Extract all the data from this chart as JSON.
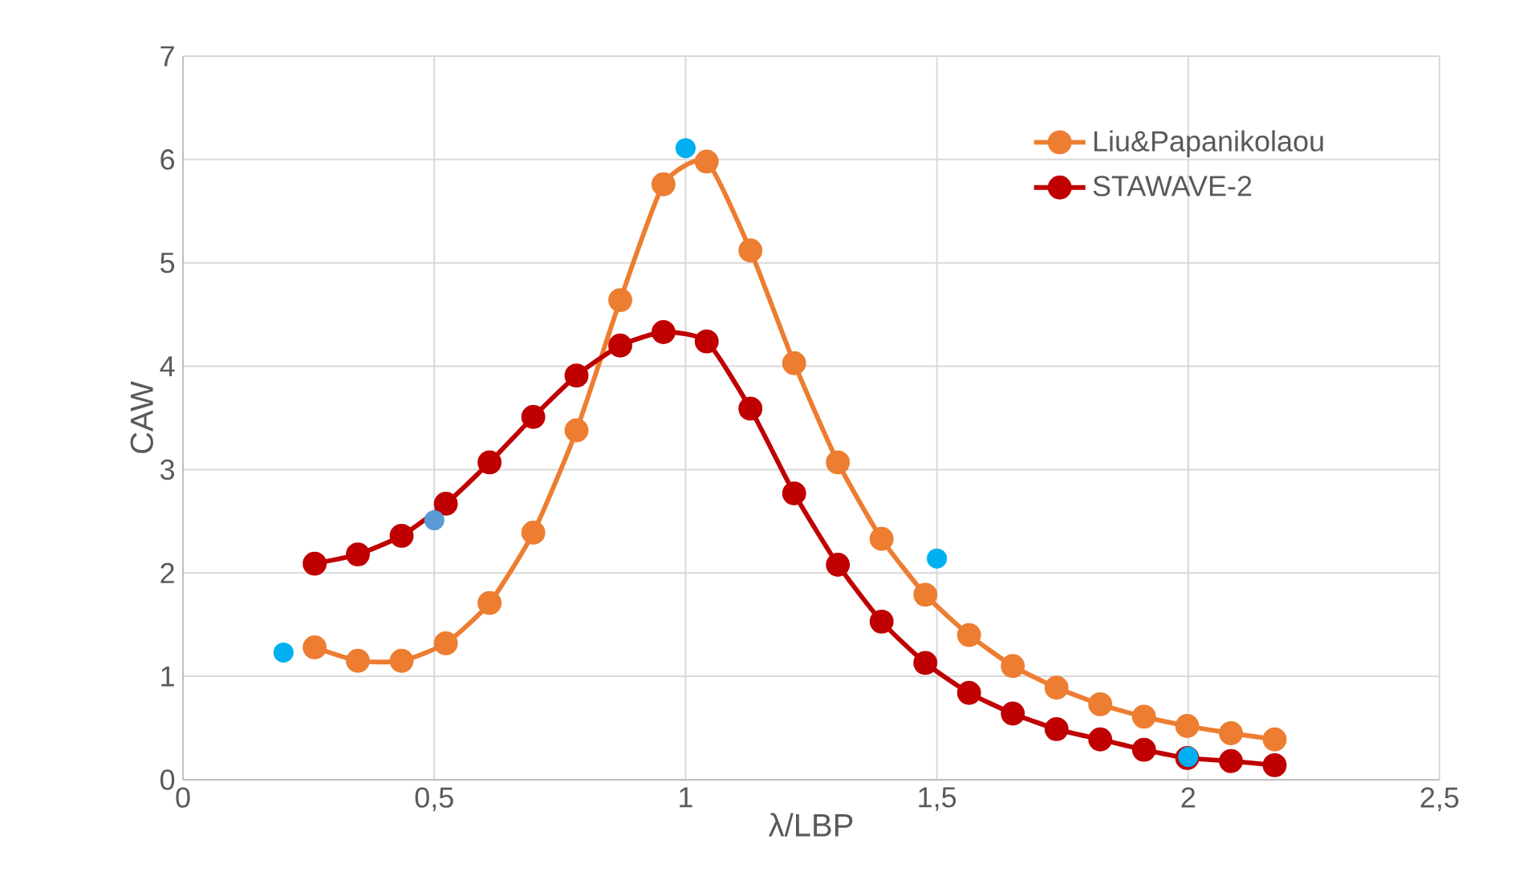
{
  "chart_data": {
    "type": "line",
    "xlabel": "λ/LBP",
    "ylabel": "CAW",
    "xlim": [
      0,
      2.5
    ],
    "xticks": [
      0,
      {
        "value": 0.5,
        "label": "0,5"
      },
      1,
      {
        "value": 1.5,
        "label": "1,5"
      },
      2,
      {
        "value": 2.5,
        "label": "2,5"
      }
    ],
    "ylim": [
      0,
      7
    ],
    "yticks": [
      0,
      1,
      2,
      3,
      4,
      5,
      6,
      7
    ],
    "grid": true,
    "legend": "top right",
    "marker": "circle",
    "line_style": "solid",
    "series": [
      {
        "type": "scatter",
        "colors": [
          "#00b0f0",
          "#5b9bd5",
          "#00b0f0",
          "#00b0f0",
          "#00b0f0"
        ],
        "x": [
          0.2,
          0.5,
          1.0,
          1.5,
          2.0
        ],
        "values": [
          1.23,
          2.51,
          6.11,
          2.14,
          0.22
        ]
      },
      {
        "name": "Liu&Papanikolaou",
        "color": "#ed7d31",
        "x": [
          0.262,
          0.348,
          0.435,
          0.523,
          0.61,
          0.697,
          0.783,
          0.87,
          0.956,
          1.042,
          1.129,
          1.216,
          1.303,
          1.39,
          1.477,
          1.564,
          1.651,
          1.738,
          1.825,
          1.912,
          1.998,
          2.085,
          2.172
        ],
        "values": [
          1.28,
          1.15,
          1.15,
          1.32,
          1.71,
          2.39,
          3.38,
          4.64,
          5.76,
          5.98,
          5.12,
          4.03,
          3.07,
          2.33,
          1.79,
          1.4,
          1.1,
          0.89,
          0.73,
          0.61,
          0.52,
          0.45,
          0.39
        ]
      },
      {
        "name": "STAWAVE-2",
        "color": "#c00000",
        "x": [
          0.262,
          0.348,
          0.435,
          0.523,
          0.61,
          0.697,
          0.783,
          0.87,
          0.956,
          1.042,
          1.129,
          1.216,
          1.303,
          1.39,
          1.477,
          1.564,
          1.651,
          1.738,
          1.825,
          1.912,
          1.998,
          2.085,
          2.172
        ],
        "values": [
          2.09,
          2.18,
          2.36,
          2.67,
          3.07,
          3.51,
          3.91,
          4.2,
          4.33,
          4.24,
          3.59,
          2.77,
          2.08,
          1.53,
          1.13,
          0.84,
          0.64,
          0.49,
          0.39,
          0.29,
          0.21,
          0.18,
          0.14
        ]
      }
    ]
  }
}
